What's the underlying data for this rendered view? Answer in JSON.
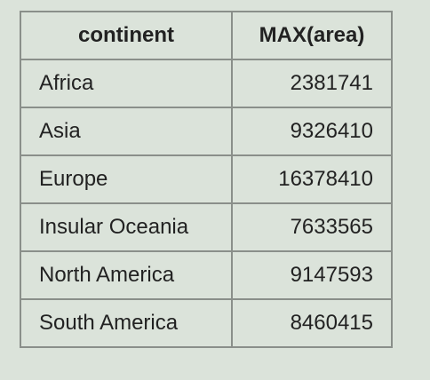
{
  "table": {
    "headers": [
      "continent",
      "MAX(area)"
    ],
    "rows": [
      {
        "continent": "Africa",
        "max_area": "2381741"
      },
      {
        "continent": "Asia",
        "max_area": "9326410"
      },
      {
        "continent": "Europe",
        "max_area": "16378410"
      },
      {
        "continent": "Insular Oceania",
        "max_area": "7633565"
      },
      {
        "continent": "North America",
        "max_area": "9147593"
      },
      {
        "continent": "South America",
        "max_area": "8460415"
      }
    ]
  },
  "colors": {
    "background": "#dbe3da",
    "border": "#8a8f8a",
    "text": "#222222"
  }
}
